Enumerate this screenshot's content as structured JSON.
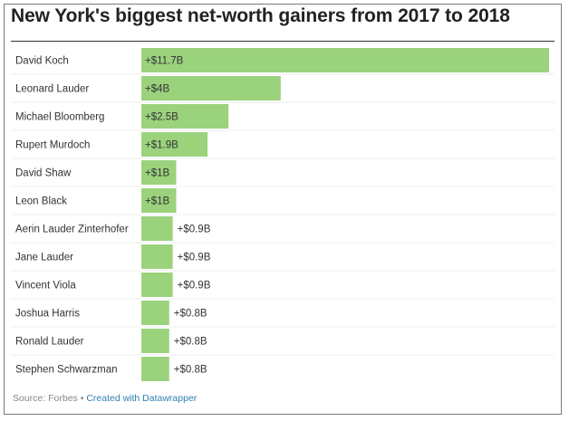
{
  "chart_data": {
    "type": "bar",
    "orientation": "horizontal",
    "title": "New York's biggest net-worth gainers from 2017 to 2018",
    "categories": [
      "David Koch",
      "Leonard Lauder",
      "Michael Bloomberg",
      "Rupert Murdoch",
      "David Shaw",
      "Leon Black",
      "Aerin Lauder Zinterhofer",
      "Jane Lauder",
      "Vincent Viola",
      "Joshua Harris",
      "Ronald Lauder",
      "Stephen Schwarzman"
    ],
    "values": [
      11.7,
      4,
      2.5,
      1.9,
      1,
      1,
      0.9,
      0.9,
      0.9,
      0.8,
      0.8,
      0.8
    ],
    "value_labels": [
      "+$11.7B",
      "+$4B",
      "+$2.5B",
      "+$1.9B",
      "+$1B",
      "+$1B",
      "+$0.9B",
      "+$0.9B",
      "+$0.9B",
      "+$0.8B",
      "+$0.8B",
      "+$0.8B"
    ],
    "xlabel": "",
    "ylabel": "",
    "xlim": [
      0,
      11.7
    ],
    "grid": false,
    "bar_color": "#9bd27c"
  },
  "footer": {
    "source": "Source: Forbes",
    "separator": " • ",
    "credit": "Created with Datawrapper"
  }
}
